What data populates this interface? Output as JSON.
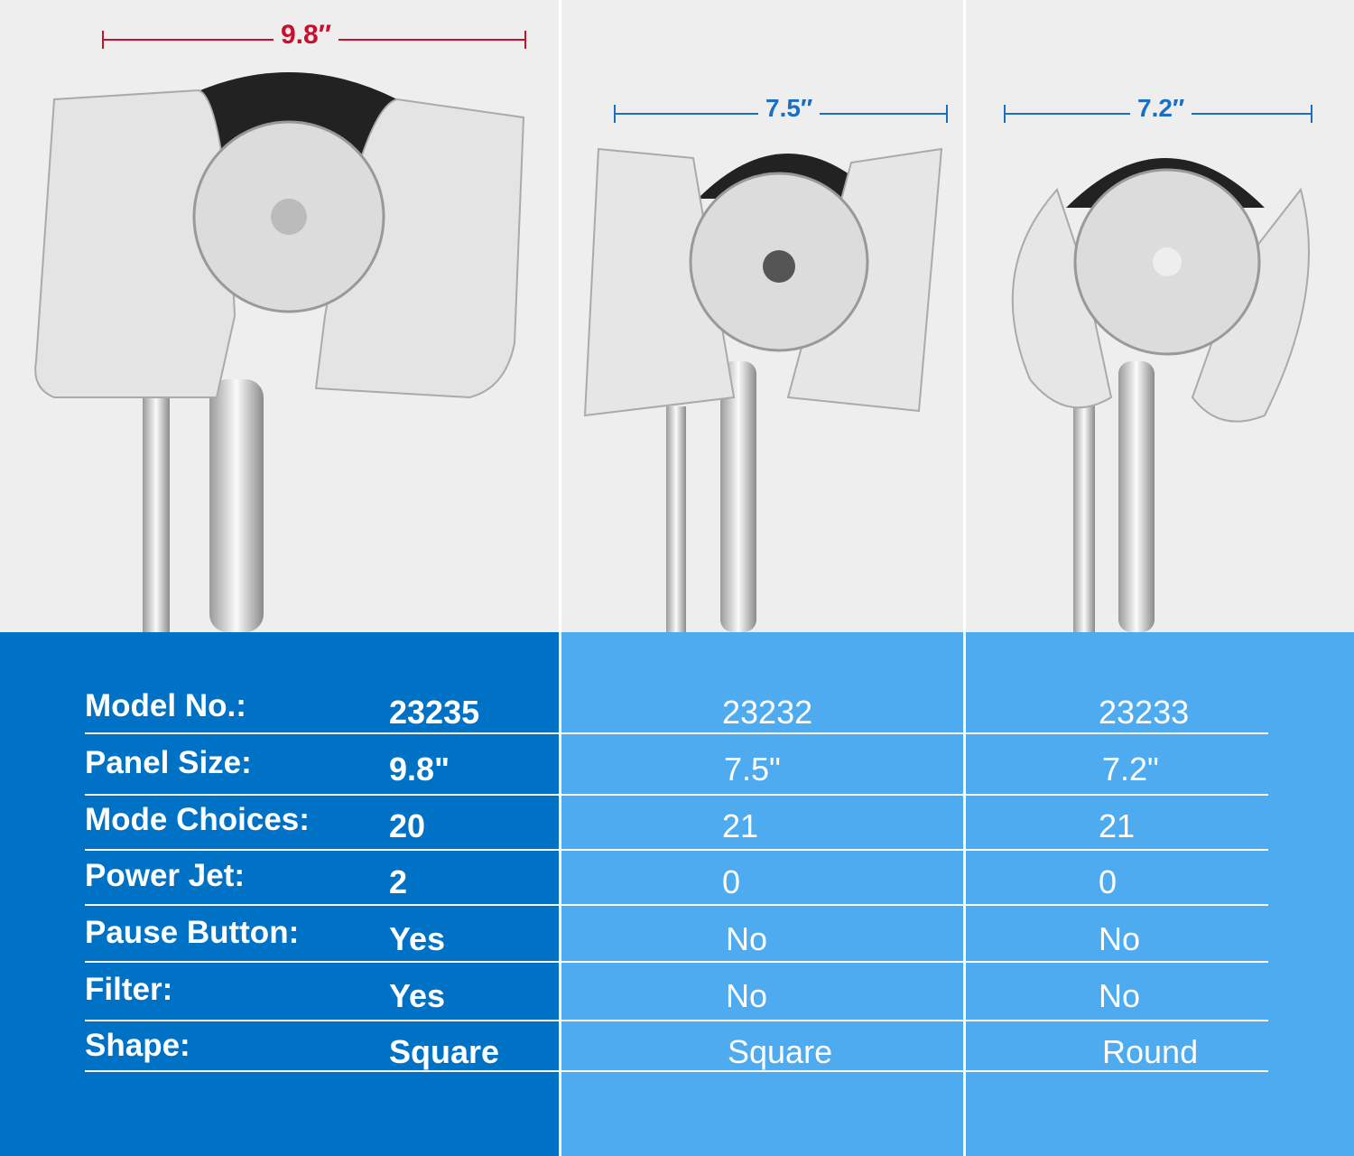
{
  "products": [
    {
      "dimension": "9.8″",
      "dimension_color": "#c8102e"
    },
    {
      "dimension": "7.5″",
      "dimension_color": "#1a6fc0"
    },
    {
      "dimension": "7.2″",
      "dimension_color": "#1a6fc0"
    }
  ],
  "colors": {
    "left_table_bg": "#0072c6",
    "right_table_bg": "#4fabef",
    "photo_bg": "#eeeeee"
  },
  "table": {
    "rows": [
      {
        "label": "Model No.:",
        "values": [
          "23235",
          "23232",
          "23233"
        ]
      },
      {
        "label": "Panel Size:",
        "values": [
          "9.8\"",
          "7.5\"",
          "7.2\""
        ]
      },
      {
        "label": "Mode Choices:",
        "values": [
          "20",
          "21",
          "21"
        ]
      },
      {
        "label": "Power Jet:",
        "values": [
          "2",
          "0",
          "0"
        ]
      },
      {
        "label": "Pause Button:",
        "values": [
          "Yes",
          "No",
          "No"
        ]
      },
      {
        "label": "Filter:",
        "values": [
          "Yes",
          "No",
          "No"
        ]
      },
      {
        "label": "Shape:",
        "values": [
          "Square",
          "Square",
          "Round"
        ]
      }
    ]
  }
}
